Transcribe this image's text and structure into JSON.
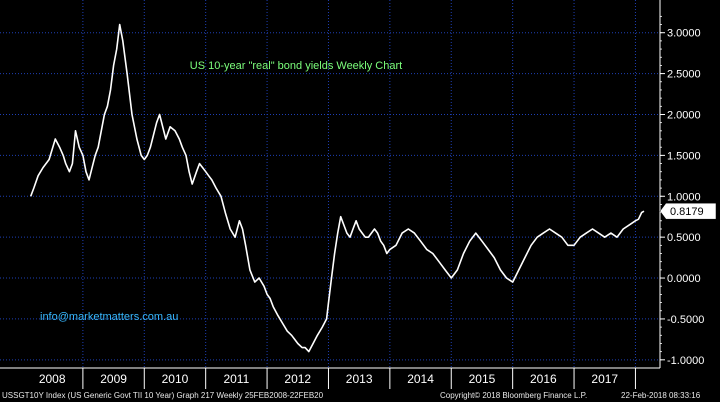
{
  "chart_data": {
    "type": "line",
    "title": "US 10-year \"real\" bond yields Weekly Chart",
    "annotation": "info@marketmatters.com.au",
    "x_labels": [
      "2008",
      "2009",
      "2010",
      "2011",
      "2012",
      "2013",
      "2014",
      "2015",
      "2016",
      "2017"
    ],
    "y_ticks": [
      "3.0000",
      "2.5000",
      "2.0000",
      "1.5000",
      "1.0000",
      "0.5000",
      "0.0000",
      "-0.5000",
      "-1.0000"
    ],
    "ylim": [
      -1.1,
      3.4
    ],
    "last_value_label": "0.8179",
    "grid": true,
    "colors": {
      "background": "#000000",
      "grid": "#1e3fb4",
      "line": "#ffffff",
      "title": "#7cff7c",
      "annotation": "#38b8ff"
    },
    "series": [
      {
        "x": [
          2008.15,
          2008.2,
          2008.27,
          2008.35,
          2008.45,
          2008.55,
          2008.62,
          2008.68,
          2008.72,
          2008.78,
          2008.83,
          2008.88,
          2008.94,
          2009.0,
          2009.05,
          2009.1,
          2009.15,
          2009.2,
          2009.25,
          2009.3,
          2009.35,
          2009.4,
          2009.45,
          2009.5,
          2009.55,
          2009.6,
          2009.65,
          2009.72,
          2009.8,
          2009.88,
          2009.95,
          2010.0,
          2010.05,
          2010.1,
          2010.15,
          2010.2,
          2010.25,
          2010.3,
          2010.35,
          2010.42,
          2010.5,
          2010.57,
          2010.62,
          2010.68,
          2010.73,
          2010.78,
          2010.85,
          2010.9,
          2010.95,
          2011.0,
          2011.05,
          2011.1,
          2011.17,
          2011.25,
          2011.32,
          2011.4,
          2011.48,
          2011.55,
          2011.6,
          2011.65,
          2011.72,
          2011.8,
          2011.87,
          2011.95,
          2012.0,
          2012.05,
          2012.1,
          2012.17,
          2012.25,
          2012.33,
          2012.4,
          2012.45,
          2012.5,
          2012.57,
          2012.62,
          2012.68,
          2012.75,
          2012.82,
          2012.9,
          2012.97,
          2013.0,
          2013.05,
          2013.1,
          2013.15,
          2013.2,
          2013.25,
          2013.3,
          2013.35,
          2013.4,
          2013.45,
          2013.5,
          2013.55,
          2013.6,
          2013.65,
          2013.7,
          2013.75,
          2013.8,
          2013.85,
          2013.9,
          2013.95,
          2014.0,
          2014.1,
          2014.2,
          2014.3,
          2014.4,
          2014.5,
          2014.6,
          2014.7,
          2014.8,
          2014.9,
          2015.0,
          2015.1,
          2015.2,
          2015.3,
          2015.4,
          2015.5,
          2015.6,
          2015.7,
          2015.8,
          2015.9,
          2016.0,
          2016.1,
          2016.2,
          2016.3,
          2016.4,
          2016.5,
          2016.6,
          2016.7,
          2016.8,
          2016.9,
          2017.0,
          2017.1,
          2017.2,
          2017.3,
          2017.4,
          2017.5,
          2017.6,
          2017.7,
          2017.8,
          2017.9,
          2018.0,
          2018.05,
          2018.1,
          2018.14
        ],
        "values": [
          1.0,
          1.1,
          1.25,
          1.35,
          1.45,
          1.7,
          1.6,
          1.5,
          1.4,
          1.3,
          1.4,
          1.8,
          1.6,
          1.5,
          1.3,
          1.2,
          1.35,
          1.5,
          1.6,
          1.8,
          2.0,
          2.1,
          2.3,
          2.6,
          2.8,
          3.1,
          2.9,
          2.5,
          2.0,
          1.7,
          1.5,
          1.45,
          1.5,
          1.6,
          1.75,
          1.9,
          2.0,
          1.85,
          1.7,
          1.85,
          1.8,
          1.7,
          1.6,
          1.5,
          1.3,
          1.15,
          1.3,
          1.4,
          1.35,
          1.3,
          1.25,
          1.2,
          1.1,
          1.0,
          0.8,
          0.6,
          0.5,
          0.7,
          0.6,
          0.4,
          0.1,
          -0.05,
          0.0,
          -0.1,
          -0.2,
          -0.25,
          -0.35,
          -0.45,
          -0.55,
          -0.65,
          -0.7,
          -0.75,
          -0.8,
          -0.85,
          -0.85,
          -0.9,
          -0.8,
          -0.7,
          -0.6,
          -0.5,
          -0.3,
          0.0,
          0.3,
          0.55,
          0.75,
          0.65,
          0.55,
          0.5,
          0.6,
          0.7,
          0.6,
          0.55,
          0.5,
          0.5,
          0.55,
          0.6,
          0.55,
          0.45,
          0.4,
          0.3,
          0.35,
          0.4,
          0.55,
          0.6,
          0.55,
          0.45,
          0.35,
          0.3,
          0.2,
          0.1,
          0.0,
          0.1,
          0.3,
          0.45,
          0.55,
          0.45,
          0.35,
          0.25,
          0.1,
          0.0,
          -0.05,
          0.1,
          0.25,
          0.4,
          0.5,
          0.55,
          0.6,
          0.55,
          0.5,
          0.4,
          0.4,
          0.5,
          0.55,
          0.6,
          0.55,
          0.5,
          0.55,
          0.5,
          0.6,
          0.65,
          0.7,
          0.72,
          0.8,
          0.8179
        ]
      }
    ]
  },
  "footer": {
    "left": "USSGT10Y Index (US Generic Govt TII 10 Year) Graph 217  Weekly 25FEB2008-22FEB20",
    "center": "Copyright© 2018 Bloomberg Finance L.P.",
    "right": "22-Feb-2018 08:33:16"
  }
}
